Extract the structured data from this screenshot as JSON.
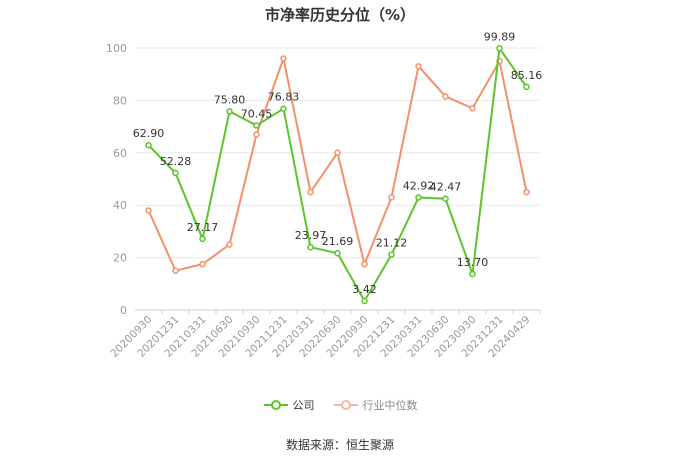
{
  "title": "市净率历史分位（%）",
  "source": "数据来源：恒生聚源",
  "colors": {
    "company": "#5cc52c",
    "industry": "#f4906a",
    "grid": "#e8e8e8",
    "axis_text": "#999999",
    "label_text": "#333333"
  },
  "legend": [
    {
      "label": "公司",
      "color": "#5cc52c",
      "active": true
    },
    {
      "label": "行业中位数",
      "color": "#f4906a",
      "active": false
    }
  ],
  "chart_data": {
    "type": "line",
    "title": "市净率历史分位（%）",
    "xlabel": "",
    "ylabel": "",
    "ylim": [
      0,
      100
    ],
    "yticks": [
      0,
      20,
      40,
      60,
      80,
      100
    ],
    "grid": true,
    "legend_position": "bottom",
    "categories": [
      "20200930",
      "20201231",
      "20210331",
      "20210630",
      "20210930",
      "20211231",
      "20220331",
      "20220630",
      "20220930",
      "20221231",
      "20230331",
      "20230630",
      "20230930",
      "20231231",
      "20240429"
    ],
    "series": [
      {
        "name": "公司",
        "values": [
          62.9,
          52.28,
          27.17,
          75.8,
          70.45,
          76.83,
          23.97,
          21.69,
          3.42,
          21.12,
          42.92,
          42.47,
          13.7,
          99.89,
          85.16
        ],
        "labels": [
          "62.90",
          "52.28",
          "27.17",
          "75.80",
          "70.45",
          "76.83",
          "23.97",
          "21.69",
          "3.42",
          "21.12",
          "42.92",
          "42.47",
          "13.70",
          "99.89",
          "85.16"
        ]
      },
      {
        "name": "行业中位数",
        "values": [
          38,
          15,
          17.5,
          25,
          67,
          96,
          45,
          60,
          17.5,
          43,
          93,
          81.5,
          77,
          95,
          45
        ]
      }
    ]
  }
}
